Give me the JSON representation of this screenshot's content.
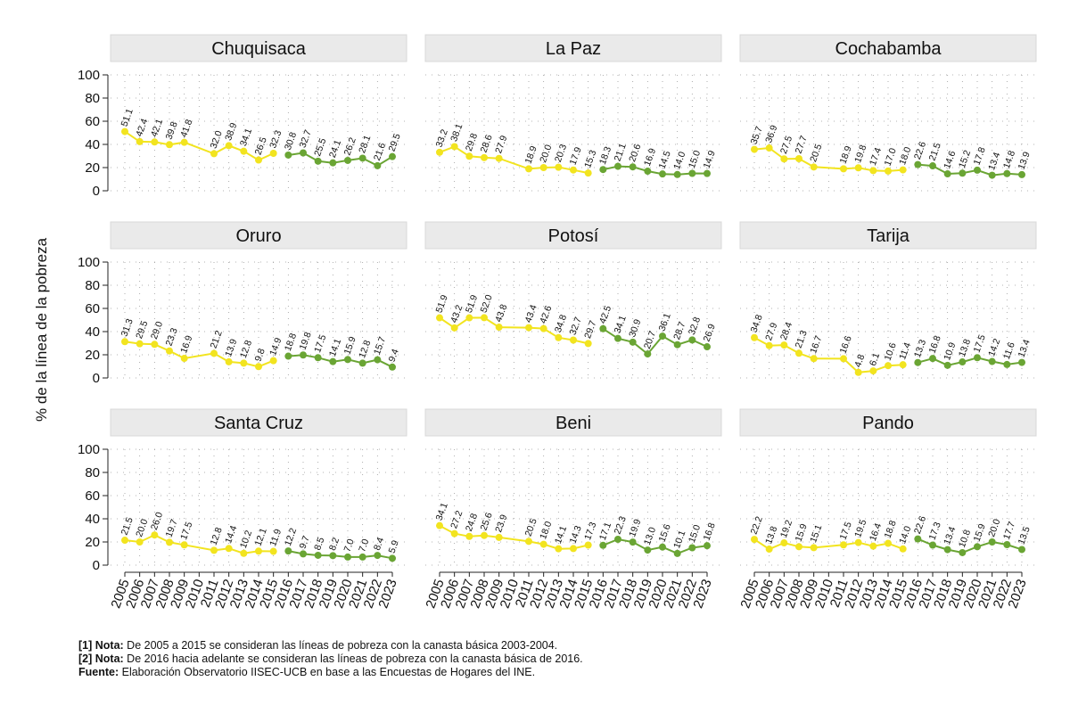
{
  "chart_data": {
    "type": "line",
    "ylabel": "% de la línea de la pobreza",
    "ylim": [
      0,
      100
    ],
    "yticks": [
      0,
      20,
      40,
      60,
      80,
      100
    ],
    "x": [
      "2005",
      "2006",
      "2007",
      "2008",
      "2009",
      "2010",
      "2011",
      "2012",
      "2013",
      "2014",
      "2015",
      "2016",
      "2017",
      "2018",
      "2019",
      "2020",
      "2021",
      "2022",
      "2023"
    ],
    "colors": {
      "canasta_2003_2004": "#f2e41f",
      "canasta_2016": "#6aa534"
    },
    "grid": "dotted",
    "panels": [
      {
        "name": "Chuquisaca",
        "series_a": [
          [
            2005,
            51.1
          ],
          [
            2006,
            42.4
          ],
          [
            2007,
            42.1
          ],
          [
            2008,
            39.8
          ],
          [
            2009,
            41.8
          ],
          [
            2011,
            32.0
          ],
          [
            2012,
            38.9
          ],
          [
            2013,
            34.1
          ],
          [
            2014,
            26.5
          ],
          [
            2015,
            32.3
          ]
        ],
        "series_b": [
          [
            2016,
            30.8
          ],
          [
            2017,
            32.7
          ],
          [
            2018,
            25.5
          ],
          [
            2019,
            24.1
          ],
          [
            2020,
            26.2
          ],
          [
            2021,
            28.1
          ],
          [
            2022,
            21.6
          ],
          [
            2023,
            29.5
          ]
        ]
      },
      {
        "name": "La Paz",
        "series_a": [
          [
            2005,
            33.2
          ],
          [
            2006,
            38.1
          ],
          [
            2007,
            29.8
          ],
          [
            2008,
            28.6
          ],
          [
            2009,
            27.9
          ],
          [
            2011,
            18.9
          ],
          [
            2012,
            20.0
          ],
          [
            2013,
            20.3
          ],
          [
            2014,
            17.9
          ],
          [
            2015,
            15.3
          ]
        ],
        "series_b": [
          [
            2016,
            18.3
          ],
          [
            2017,
            21.1
          ],
          [
            2018,
            20.6
          ],
          [
            2019,
            16.9
          ],
          [
            2020,
            14.5
          ],
          [
            2021,
            14.0
          ],
          [
            2022,
            15.0
          ],
          [
            2023,
            14.9
          ]
        ]
      },
      {
        "name": "Cochabamba",
        "series_a": [
          [
            2005,
            35.7
          ],
          [
            2006,
            36.9
          ],
          [
            2007,
            27.5
          ],
          [
            2008,
            27.7
          ],
          [
            2009,
            20.5
          ],
          [
            2011,
            18.9
          ],
          [
            2012,
            19.8
          ],
          [
            2013,
            17.4
          ],
          [
            2014,
            17.0
          ],
          [
            2015,
            18.0
          ]
        ],
        "series_b": [
          [
            2016,
            22.6
          ],
          [
            2017,
            21.5
          ],
          [
            2018,
            14.6
          ],
          [
            2019,
            15.2
          ],
          [
            2020,
            17.8
          ],
          [
            2021,
            13.4
          ],
          [
            2022,
            14.8
          ],
          [
            2023,
            13.9
          ]
        ]
      },
      {
        "name": "Oruro",
        "series_a": [
          [
            2005,
            31.3
          ],
          [
            2006,
            29.5
          ],
          [
            2007,
            29.0
          ],
          [
            2008,
            23.3
          ],
          [
            2009,
            16.9
          ],
          [
            2011,
            21.2
          ],
          [
            2012,
            13.9
          ],
          [
            2013,
            12.8
          ],
          [
            2014,
            9.8
          ],
          [
            2015,
            14.9
          ]
        ],
        "series_b": [
          [
            2016,
            18.8
          ],
          [
            2017,
            19.8
          ],
          [
            2018,
            17.5
          ],
          [
            2019,
            14.1
          ],
          [
            2020,
            15.9
          ],
          [
            2021,
            12.8
          ],
          [
            2022,
            15.7
          ],
          [
            2023,
            9.4
          ]
        ]
      },
      {
        "name": "Potosí",
        "series_a": [
          [
            2005,
            51.9
          ],
          [
            2006,
            43.2
          ],
          [
            2007,
            51.9
          ],
          [
            2008,
            52.0
          ],
          [
            2009,
            43.8
          ],
          [
            2011,
            43.4
          ],
          [
            2012,
            42.6
          ],
          [
            2013,
            34.8
          ],
          [
            2014,
            32.7
          ],
          [
            2015,
            29.7
          ]
        ],
        "series_b": [
          [
            2016,
            42.5
          ],
          [
            2017,
            34.1
          ],
          [
            2018,
            30.9
          ],
          [
            2019,
            20.7
          ],
          [
            2020,
            36.1
          ],
          [
            2021,
            28.7
          ],
          [
            2022,
            32.8
          ],
          [
            2023,
            26.9
          ]
        ]
      },
      {
        "name": "Tarija",
        "series_a": [
          [
            2005,
            34.8
          ],
          [
            2006,
            27.9
          ],
          [
            2007,
            28.4
          ],
          [
            2008,
            21.3
          ],
          [
            2009,
            16.7
          ],
          [
            2011,
            16.6
          ],
          [
            2012,
            4.8
          ],
          [
            2013,
            6.1
          ],
          [
            2014,
            10.6
          ],
          [
            2015,
            11.4
          ]
        ],
        "series_b": [
          [
            2016,
            13.3
          ],
          [
            2017,
            16.8
          ],
          [
            2018,
            10.9
          ],
          [
            2019,
            13.8
          ],
          [
            2020,
            17.5
          ],
          [
            2021,
            14.2
          ],
          [
            2022,
            11.6
          ],
          [
            2023,
            13.4
          ]
        ]
      },
      {
        "name": "Santa Cruz",
        "series_a": [
          [
            2005,
            21.5
          ],
          [
            2006,
            20.0
          ],
          [
            2007,
            26.0
          ],
          [
            2008,
            19.7
          ],
          [
            2009,
            17.5
          ],
          [
            2011,
            12.8
          ],
          [
            2012,
            14.4
          ],
          [
            2013,
            10.2
          ],
          [
            2014,
            12.1
          ],
          [
            2015,
            11.9
          ]
        ],
        "series_b": [
          [
            2016,
            12.2
          ],
          [
            2017,
            9.7
          ],
          [
            2018,
            8.5
          ],
          [
            2019,
            8.2
          ],
          [
            2020,
            7.0
          ],
          [
            2021,
            7.0
          ],
          [
            2022,
            8.4
          ],
          [
            2023,
            5.9
          ]
        ]
      },
      {
        "name": "Beni",
        "series_a": [
          [
            2005,
            34.1
          ],
          [
            2006,
            27.2
          ],
          [
            2007,
            24.8
          ],
          [
            2008,
            25.6
          ],
          [
            2009,
            23.9
          ],
          [
            2011,
            20.5
          ],
          [
            2012,
            18.0
          ],
          [
            2013,
            14.1
          ],
          [
            2014,
            14.3
          ],
          [
            2015,
            17.3
          ]
        ],
        "series_b": [
          [
            2016,
            17.1
          ],
          [
            2017,
            22.3
          ],
          [
            2018,
            19.9
          ],
          [
            2019,
            13.0
          ],
          [
            2020,
            15.6
          ],
          [
            2021,
            10.1
          ],
          [
            2022,
            15.0
          ],
          [
            2023,
            16.8
          ]
        ]
      },
      {
        "name": "Pando",
        "series_a": [
          [
            2005,
            22.2
          ],
          [
            2006,
            13.8
          ],
          [
            2007,
            19.2
          ],
          [
            2008,
            15.9
          ],
          [
            2009,
            15.1
          ],
          [
            2011,
            17.5
          ],
          [
            2012,
            19.5
          ],
          [
            2013,
            16.4
          ],
          [
            2014,
            18.8
          ],
          [
            2015,
            14.0
          ]
        ],
        "series_b": [
          [
            2016,
            22.6
          ],
          [
            2017,
            17.3
          ],
          [
            2018,
            13.4
          ],
          [
            2019,
            10.8
          ],
          [
            2020,
            15.9
          ],
          [
            2021,
            20.0
          ],
          [
            2022,
            17.7
          ],
          [
            2023,
            13.5
          ]
        ]
      }
    ]
  },
  "notes": {
    "nota1_label": "[1] Nota:",
    "nota1_text": " De 2005 a 2015 se consideran las líneas de pobreza con la canasta básica 2003-2004.",
    "nota2_label": "[2] Nota:",
    "nota2_text": " De 2016 hacia adelante se consideran las líneas de pobreza con la canasta básica de 2016.",
    "fuente_label": "Fuente:",
    "fuente_text": " Elaboración Observatorio IISEC-UCB en base a las Encuestas de Hogares del INE."
  }
}
